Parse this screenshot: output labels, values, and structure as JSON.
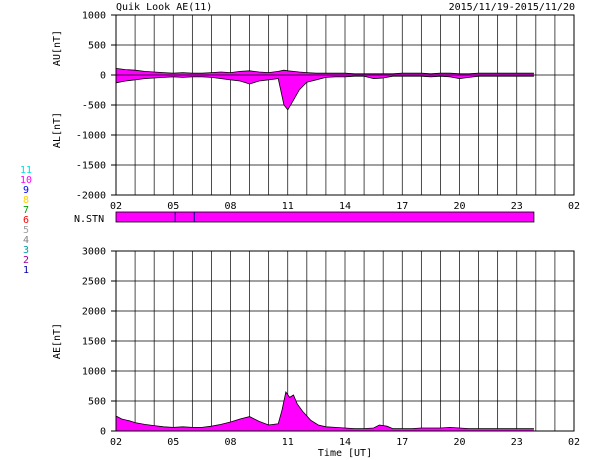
{
  "header": {
    "title": "Quik Look AE(11)",
    "date_range": "2015/11/19-2015/11/20"
  },
  "chart_data": [
    {
      "type": "area",
      "panel": "AU/AL",
      "ylabel_upper": "AU[nT]",
      "ylabel_lower": "AL[nT]",
      "ylim": [
        -2000,
        1000
      ],
      "yticks": [
        1000,
        500,
        0,
        -500,
        -1000,
        -1500,
        -2000
      ],
      "x_ticks": [
        "02",
        "05",
        "08",
        "11",
        "14",
        "17",
        "20",
        "23",
        "02"
      ],
      "x_range_hours": [
        2,
        26
      ],
      "grid": true,
      "fill_color": "#ff00ff",
      "data_end_hour": 23.9,
      "series": [
        {
          "name": "AU",
          "x": [
            2,
            2.5,
            3,
            3.5,
            4,
            4.5,
            5,
            5.5,
            6,
            6.5,
            7,
            7.5,
            8,
            8.5,
            9,
            9.5,
            10,
            10.5,
            10.8,
            11,
            11.3,
            11.6,
            12,
            12.5,
            13,
            13.5,
            14,
            14.5,
            15,
            15.5,
            16,
            16.5,
            17,
            17.5,
            18,
            18.5,
            19,
            19.5,
            20,
            20.5,
            21,
            21.5,
            22,
            22.5,
            23,
            23.5,
            23.9
          ],
          "values": [
            110,
            90,
            80,
            60,
            50,
            40,
            30,
            40,
            30,
            30,
            40,
            50,
            40,
            60,
            70,
            50,
            40,
            60,
            80,
            70,
            60,
            50,
            40,
            30,
            30,
            30,
            30,
            20,
            20,
            20,
            20,
            20,
            30,
            30,
            30,
            20,
            30,
            30,
            20,
            20,
            30,
            30,
            30,
            30,
            30,
            30,
            30
          ]
        },
        {
          "name": "AL",
          "x": [
            2,
            2.5,
            3,
            3.5,
            4,
            4.5,
            5,
            5.5,
            6,
            6.5,
            7,
            7.5,
            8,
            8.5,
            9,
            9.5,
            10,
            10.5,
            10.8,
            11,
            11.3,
            11.6,
            12,
            12.5,
            13,
            13.5,
            14,
            14.5,
            15,
            15.5,
            16,
            16.5,
            17,
            17.5,
            18,
            18.5,
            19,
            19.5,
            20,
            20.5,
            21,
            21.5,
            22,
            22.5,
            23,
            23.5,
            23.9
          ],
          "values": [
            -130,
            -100,
            -80,
            -60,
            -50,
            -40,
            -30,
            -40,
            -30,
            -30,
            -40,
            -60,
            -80,
            -100,
            -150,
            -100,
            -80,
            -60,
            -500,
            -580,
            -420,
            -250,
            -120,
            -80,
            -40,
            -30,
            -30,
            -20,
            -20,
            -60,
            -50,
            -20,
            -20,
            -20,
            -20,
            -30,
            -20,
            -30,
            -60,
            -40,
            -20,
            -20,
            -20,
            -20,
            -20,
            -20,
            -20
          ]
        }
      ]
    },
    {
      "type": "bar",
      "panel": "N.STN",
      "label": "N.STN",
      "legend_numbers": [
        "11",
        "10",
        "9",
        "8",
        "7",
        "6",
        "5",
        "4",
        "3",
        "2",
        "1"
      ],
      "legend_colors": [
        "#00e0e0",
        "#ff00ff",
        "#0000ff",
        "#ffd000",
        "#00a000",
        "#ff0000",
        "#a0a0a0",
        "#808080",
        "#00a0a0",
        "#a000a0",
        "#0000a0"
      ],
      "stations_value": 10,
      "color": "#ff00ff",
      "x_range_hours": [
        2,
        23.9
      ],
      "marker_hours": [
        5.1,
        6.1
      ]
    },
    {
      "type": "area",
      "panel": "AE",
      "ylabel": "AE[nT]",
      "ylim": [
        0,
        3000
      ],
      "yticks": [
        3000,
        2500,
        2000,
        1500,
        1000,
        500,
        0
      ],
      "x_ticks": [
        "02",
        "05",
        "08",
        "11",
        "14",
        "17",
        "20",
        "23",
        "02"
      ],
      "xlabel": "Time [UT]",
      "x_range_hours": [
        2,
        26
      ],
      "grid": true,
      "fill_color": "#ff00ff",
      "series": [
        {
          "name": "AE",
          "x": [
            2,
            2.3,
            2.7,
            3,
            3.5,
            4,
            4.5,
            5,
            5.5,
            6,
            6.5,
            7,
            7.5,
            8,
            8.5,
            9,
            9.5,
            10,
            10.5,
            10.7,
            10.9,
            11.1,
            11.3,
            11.5,
            11.8,
            12.2,
            12.6,
            13,
            13.5,
            14,
            14.5,
            15,
            15.5,
            15.8,
            16.2,
            16.5,
            17,
            17.5,
            18,
            18.5,
            19,
            19.5,
            20,
            20.5,
            21,
            21.5,
            22,
            22.5,
            23,
            23.5,
            23.9
          ],
          "values": [
            250,
            200,
            170,
            140,
            110,
            90,
            70,
            60,
            70,
            60,
            60,
            80,
            110,
            150,
            200,
            240,
            160,
            100,
            120,
            350,
            650,
            560,
            600,
            450,
            320,
            180,
            100,
            70,
            60,
            50,
            40,
            40,
            50,
            100,
            80,
            40,
            40,
            40,
            50,
            50,
            50,
            60,
            50,
            40,
            40,
            40,
            40,
            40,
            40,
            40,
            40
          ]
        }
      ]
    }
  ]
}
